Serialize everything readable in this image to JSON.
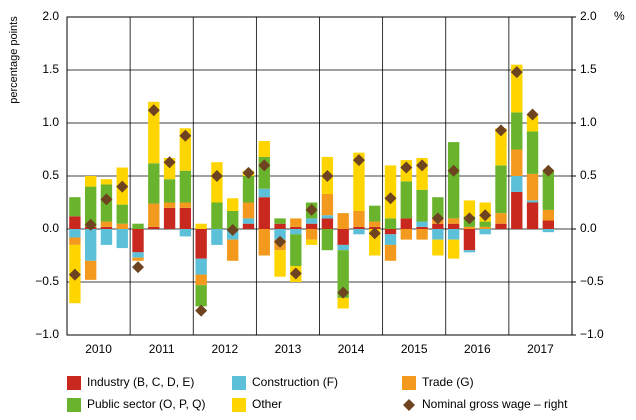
{
  "chart_data": {
    "type": "bar",
    "stacked": true,
    "y_label": "percentage points",
    "y2_label": "%",
    "years": [
      "2010",
      "2011",
      "2012",
      "2013",
      "2014",
      "2015",
      "2016",
      "2017"
    ],
    "categories": [
      null,
      null,
      null,
      null,
      null,
      null,
      null,
      null,
      null,
      null,
      null,
      null,
      null,
      null,
      null,
      null,
      null,
      null,
      null,
      null,
      null,
      null,
      null,
      null,
      null,
      null,
      null,
      null,
      null,
      null,
      null
    ],
    "series": [
      {
        "name": "Industry (B, C, D, E)",
        "color": "#c8281e",
        "values": [
          0.12,
          0.02,
          0.02,
          0.0,
          -0.22,
          0.02,
          0.2,
          0.2,
          -0.28,
          0.0,
          0.0,
          0.05,
          0.3,
          0.05,
          0.02,
          0.05,
          0.1,
          -0.15,
          0.02,
          0.02,
          -0.05,
          0.1,
          0.02,
          0.05,
          0.05,
          -0.2,
          0.0,
          0.05,
          0.35,
          0.25,
          0.08
        ]
      },
      {
        "name": "Construction (F)",
        "color": "#5bc0d8",
        "values": [
          -0.08,
          -0.3,
          -0.15,
          -0.18,
          -0.05,
          0.0,
          0.0,
          -0.07,
          -0.15,
          -0.15,
          -0.1,
          0.05,
          0.08,
          -0.1,
          -0.05,
          0.05,
          0.03,
          -0.05,
          -0.05,
          0.0,
          -0.1,
          0.0,
          0.05,
          -0.1,
          -0.1,
          -0.02,
          -0.05,
          0.0,
          0.15,
          0.02,
          -0.03
        ]
      },
      {
        "name": "Trade (G)",
        "color": "#f39a1e",
        "values": [
          -0.07,
          -0.18,
          0.05,
          0.05,
          -0.03,
          0.22,
          0.05,
          0.05,
          -0.1,
          0.0,
          -0.2,
          0.15,
          -0.25,
          -0.1,
          0.08,
          -0.1,
          0.2,
          0.15,
          0.15,
          0.05,
          -0.15,
          -0.1,
          -0.1,
          0.05,
          0.05,
          0.02,
          0.02,
          0.1,
          0.25,
          0.25,
          0.1
        ]
      },
      {
        "name": "Public sector (O, P, Q)",
        "color": "#6ab42d",
        "values": [
          0.18,
          0.38,
          0.35,
          0.18,
          0.05,
          0.38,
          0.22,
          0.3,
          -0.2,
          0.25,
          0.17,
          0.25,
          0.3,
          0.05,
          -0.3,
          0.15,
          -0.2,
          -0.45,
          0.0,
          0.15,
          0.1,
          0.35,
          0.3,
          0.2,
          0.72,
          0.1,
          0.05,
          0.45,
          0.35,
          0.4,
          0.37
        ]
      },
      {
        "name": "Other",
        "color": "#ffd500",
        "values": [
          -0.55,
          0.1,
          0.05,
          0.35,
          0.0,
          0.58,
          0.2,
          0.4,
          0.05,
          0.38,
          0.12,
          0.05,
          0.15,
          -0.25,
          -0.15,
          -0.05,
          0.35,
          -0.1,
          0.55,
          -0.25,
          0.5,
          0.2,
          0.3,
          -0.15,
          -0.18,
          0.15,
          0.18,
          0.35,
          0.45,
          0.15,
          0.0
        ]
      },
      {
        "name": "Nominal gross wage – right",
        "color": "#6e4420",
        "type": "marker",
        "axis": "y2",
        "values": [
          -0.43,
          0.04,
          0.28,
          0.4,
          -0.36,
          1.12,
          0.63,
          0.88,
          -0.77,
          0.5,
          -0.01,
          0.53,
          0.6,
          -0.12,
          -0.42,
          0.18,
          0.5,
          -0.6,
          0.65,
          -0.04,
          0.29,
          0.58,
          0.6,
          0.1,
          0.55,
          0.1,
          0.13,
          0.93,
          1.48,
          1.08,
          0.55
        ]
      }
    ],
    "ylim": [
      -1,
      2
    ],
    "yticks": [
      {
        "value": -1,
        "label": "−1.0"
      },
      {
        "value": -0.5,
        "label": "−0.5"
      },
      {
        "value": 0,
        "label": "0.0"
      },
      {
        "value": 0.5,
        "label": "0.5"
      },
      {
        "value": 1,
        "label": "1.0"
      },
      {
        "value": 1.5,
        "label": "1.5"
      },
      {
        "value": 2,
        "label": "2.0"
      }
    ],
    "y2lim": [
      -1,
      2
    ],
    "y2ticks": [
      {
        "value": -1,
        "label": "−1.0"
      },
      {
        "value": -0.5,
        "label": "−0.5"
      },
      {
        "value": 0,
        "label": "0.0"
      },
      {
        "value": 0.5,
        "label": "0.5"
      },
      {
        "value": 1,
        "label": "1.0"
      },
      {
        "value": 1.5,
        "label": "1.5"
      },
      {
        "value": 2,
        "label": "2.0"
      }
    ],
    "grid": true
  }
}
